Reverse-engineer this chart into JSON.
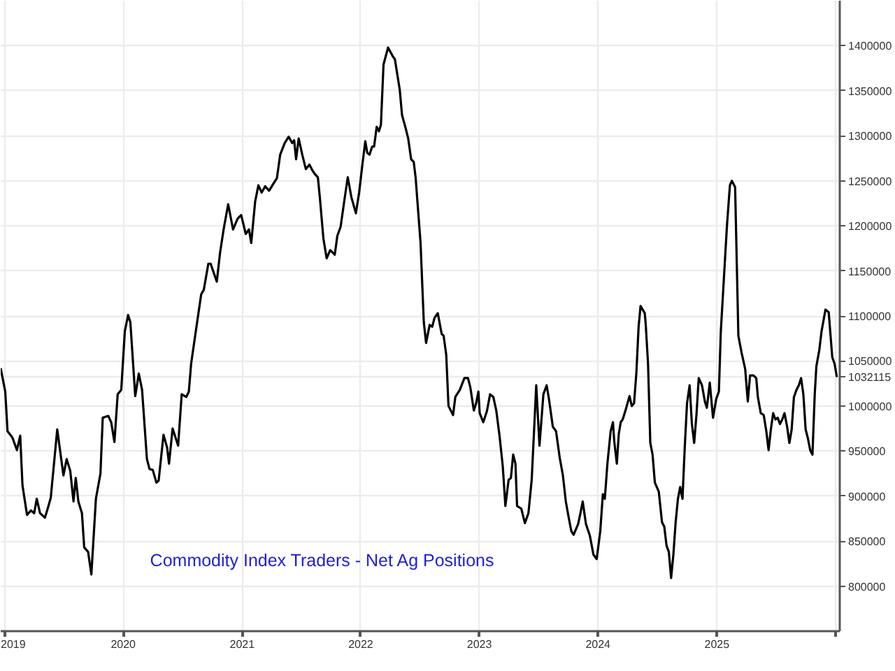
{
  "chart_data": {
    "type": "line",
    "title": "Commodity Index Traders - Net Ag Positions",
    "x": [
      "2018-12-20",
      "2019-01-03",
      "2019-01-10",
      "2019-01-25",
      "2019-02-08",
      "2019-02-18",
      "2019-02-25",
      "2019-03-11",
      "2019-03-23",
      "2019-04-02",
      "2019-04-10",
      "2019-04-20",
      "2019-05-05",
      "2019-05-12",
      "2019-05-23",
      "2019-06-12",
      "2019-07-01",
      "2019-07-11",
      "2019-07-22",
      "2019-08-01",
      "2019-08-08",
      "2019-08-16",
      "2019-08-27",
      "2019-09-03",
      "2019-09-15",
      "2019-09-25",
      "2019-10-09",
      "2019-10-23",
      "2019-10-30",
      "2019-11-16",
      "2019-11-25",
      "2019-12-05",
      "2019-12-15",
      "2019-12-26",
      "2020-01-06",
      "2020-01-16",
      "2020-01-23",
      "2020-02-07",
      "2020-02-18",
      "2020-02-28",
      "2020-03-14",
      "2020-03-22",
      "2020-04-01",
      "2020-04-12",
      "2020-04-19",
      "2020-05-04",
      "2020-05-15",
      "2020-05-21",
      "2020-06-01",
      "2020-06-18",
      "2020-06-29",
      "2020-07-13",
      "2020-07-21",
      "2020-07-28",
      "2020-08-11",
      "2020-08-28",
      "2020-09-05",
      "2020-09-19",
      "2020-09-26",
      "2020-10-15",
      "2020-10-25",
      "2020-11-05",
      "2020-11-19",
      "2020-12-04",
      "2020-12-18",
      "2020-12-29",
      "2021-01-12",
      "2021-01-22",
      "2021-01-29",
      "2021-02-10",
      "2021-02-20",
      "2021-03-02",
      "2021-03-13",
      "2021-03-25",
      "2021-04-04",
      "2021-04-18",
      "2021-04-28",
      "2021-05-12",
      "2021-05-24",
      "2021-06-04",
      "2021-06-10",
      "2021-06-16",
      "2021-06-24",
      "2021-07-05",
      "2021-07-16",
      "2021-07-27",
      "2021-08-06",
      "2021-08-14",
      "2021-08-22",
      "2021-08-28",
      "2021-09-08",
      "2021-09-18",
      "2021-09-29",
      "2021-10-13",
      "2021-10-21",
      "2021-10-31",
      "2021-11-11",
      "2021-11-22",
      "2021-12-03",
      "2021-12-17",
      "2021-12-27",
      "2022-01-07",
      "2022-01-15",
      "2022-01-21",
      "2022-01-28",
      "2022-02-05",
      "2022-02-11",
      "2022-02-19",
      "2022-02-26",
      "2022-03-04",
      "2022-03-12",
      "2022-03-26",
      "2022-04-10",
      "2022-04-16",
      "2022-05-01",
      "2022-05-08",
      "2022-05-18",
      "2022-05-27",
      "2022-06-05",
      "2022-06-13",
      "2022-06-19",
      "2022-07-04",
      "2022-07-14",
      "2022-07-21",
      "2022-08-01",
      "2022-08-09",
      "2022-08-16",
      "2022-08-26",
      "2022-09-07",
      "2022-09-13",
      "2022-09-21",
      "2022-09-28",
      "2022-10-12",
      "2022-10-19",
      "2022-11-02",
      "2022-11-16",
      "2022-11-27",
      "2022-12-04",
      "2022-12-15",
      "2022-12-22",
      "2022-12-29",
      "2023-01-02",
      "2023-01-13",
      "2023-01-24",
      "2023-02-03",
      "2023-02-13",
      "2023-02-22",
      "2023-03-04",
      "2023-03-14",
      "2023-03-22",
      "2023-04-01",
      "2023-04-08",
      "2023-04-15",
      "2023-04-22",
      "2023-04-27",
      "2023-05-10",
      "2023-05-21",
      "2023-06-01",
      "2023-06-11",
      "2023-06-25",
      "2023-07-05",
      "2023-07-17",
      "2023-07-27",
      "2023-08-03",
      "2023-08-15",
      "2023-08-25",
      "2023-09-05",
      "2023-09-15",
      "2023-09-24",
      "2023-10-04",
      "2023-10-11",
      "2023-10-18",
      "2023-11-01",
      "2023-11-08",
      "2023-11-15",
      "2023-11-25",
      "2023-12-07",
      "2023-12-18",
      "2023-12-28",
      "2024-01-08",
      "2024-01-16",
      "2024-01-22",
      "2024-01-30",
      "2024-02-09",
      "2024-02-16",
      "2024-02-20",
      "2024-02-28",
      "2024-03-05",
      "2024-03-11",
      "2024-03-17",
      "2024-03-28",
      "2024-04-07",
      "2024-04-14",
      "2024-04-21",
      "2024-04-28",
      "2024-05-05",
      "2024-05-11",
      "2024-05-24",
      "2024-05-27",
      "2024-06-03",
      "2024-06-10",
      "2024-06-17",
      "2024-06-24",
      "2024-07-06",
      "2024-07-16",
      "2024-07-23",
      "2024-07-30",
      "2024-08-06",
      "2024-08-13",
      "2024-08-20",
      "2024-08-27",
      "2024-09-03",
      "2024-09-10",
      "2024-09-17",
      "2024-09-24",
      "2024-10-01",
      "2024-10-09",
      "2024-10-16",
      "2024-10-23",
      "2024-10-30",
      "2024-11-06",
      "2024-11-16",
      "2024-11-25",
      "2024-12-01",
      "2024-12-10",
      "2024-12-20",
      "2024-12-30",
      "2025-01-07",
      "2025-01-13",
      "2025-02-01",
      "2025-02-10",
      "2025-02-16",
      "2025-02-26",
      "2025-03-08",
      "2025-03-18",
      "2025-03-29",
      "2025-04-06",
      "2025-04-13",
      "2025-04-23",
      "2025-05-02",
      "2025-05-07",
      "2025-05-16",
      "2025-05-25",
      "2025-06-02",
      "2025-06-09",
      "2025-06-16",
      "2025-06-23",
      "2025-06-30",
      "2025-07-07",
      "2025-07-14",
      "2025-07-21",
      "2025-07-28",
      "2025-08-05",
      "2025-08-12",
      "2025-08-19",
      "2025-08-26",
      "2025-09-03",
      "2025-09-10",
      "2025-09-17",
      "2025-09-24",
      "2025-10-01",
      "2025-10-08",
      "2025-10-15",
      "2025-10-22",
      "2025-10-29",
      "2025-11-03",
      "2025-11-12",
      "2025-11-19",
      "2025-12-01",
      "2025-12-11",
      "2025-12-18",
      "2025-12-22",
      "2025-12-29",
      "2026-01-05"
    ],
    "series": [
      {
        "color": "#000000",
        "values": [
          1042000,
          1016000,
          972000,
          965000,
          951000,
          967000,
          912000,
          879000,
          884000,
          881000,
          897000,
          881000,
          876000,
          884000,
          898000,
          974000,
          923000,
          941000,
          928000,
          894000,
          920000,
          894000,
          881000,
          843000,
          838000,
          813000,
          897000,
          925000,
          987000,
          989000,
          982000,
          960000,
          1013000,
          1018000,
          1083000,
          1101000,
          1093000,
          1011000,
          1036000,
          1018000,
          941000,
          930000,
          929000,
          915000,
          917000,
          968000,
          954000,
          936000,
          975000,
          956000,
          1013000,
          1010000,
          1016000,
          1047000,
          1082000,
          1124000,
          1129000,
          1158000,
          1158000,
          1138000,
          1170000,
          1196000,
          1224000,
          1196000,
          1208000,
          1212000,
          1191000,
          1196000,
          1181000,
          1227000,
          1245000,
          1237000,
          1244000,
          1239000,
          1245000,
          1253000,
          1279000,
          1292000,
          1299000,
          1292000,
          1295000,
          1274000,
          1297000,
          1279000,
          1263000,
          1268000,
          1261000,
          1257000,
          1254000,
          1232000,
          1186000,
          1164000,
          1173000,
          1168000,
          1189000,
          1199000,
          1227000,
          1254000,
          1232000,
          1214000,
          1237000,
          1271000,
          1294000,
          1281000,
          1279000,
          1288000,
          1288000,
          1310000,
          1305000,
          1312000,
          1379000,
          1398000,
          1388000,
          1385000,
          1351000,
          1323000,
          1310000,
          1297000,
          1274000,
          1271000,
          1253000,
          1181000,
          1093000,
          1070000,
          1090000,
          1088000,
          1098000,
          1103000,
          1080000,
          1078000,
          1057000,
          1000000,
          990000,
          1010000,
          1018000,
          1031000,
          1031000,
          1021000,
          995000,
          1003000,
          1016000,
          992000,
          982000,
          994000,
          1013000,
          1010000,
          995000,
          967000,
          933000,
          889000,
          918000,
          920000,
          946000,
          936000,
          889000,
          886000,
          870000,
          881000,
          918000,
          1023000,
          956000,
          1013000,
          1023000,
          1008000,
          977000,
          972000,
          943000,
          923000,
          894000,
          874000,
          861000,
          857000,
          869000,
          881000,
          894000,
          869000,
          856000,
          835000,
          830000,
          861000,
          902000,
          897000,
          936000,
          972000,
          982000,
          961000,
          936000,
          969000,
          982000,
          985000,
          998000,
          1011000,
          1000000,
          1003000,
          1036000,
          1088000,
          1111000,
          1103000,
          1090000,
          1047000,
          959000,
          946000,
          915000,
          905000,
          871000,
          866000,
          845000,
          838000,
          809000,
          835000,
          871000,
          897000,
          910000,
          897000,
          954000,
          1003000,
          1023000,
          980000,
          959000,
          990000,
          1031000,
          1023000,
          1005000,
          998000,
          1026000,
          987000,
          1008000,
          1016000,
          1083000,
          1201000,
          1245000,
          1250000,
          1243000,
          1078000,
          1059000,
          1041000,
          1005000,
          1034000,
          1034000,
          1031000,
          1010000,
          992000,
          990000,
          972000,
          951000,
          974000,
          992000,
          985000,
          987000,
          980000,
          985000,
          992000,
          977000,
          959000,
          974000,
          1010000,
          1018000,
          1023000,
          1031000,
          1013000,
          974000,
          964000,
          951000,
          946000,
          1013000,
          1044000,
          1062000,
          1083000,
          1107000,
          1104000,
          1072000,
          1054000,
          1047000,
          1032115
        ]
      }
    ],
    "xlim": [
      "2018-12-20",
      "2026-01-14"
    ],
    "xticks": [
      "2019",
      "2020",
      "2021",
      "2022",
      "2023",
      "2024",
      "2025",
      {
        "value": "2026",
        "label": null
      }
    ],
    "ylim": [
      750000,
      1450000
    ],
    "yticks": [
      800000,
      850000,
      900000,
      950000,
      1000000,
      1032115,
      1050000,
      1100000,
      1150000,
      1200000,
      1250000,
      1300000,
      1350000,
      1400000
    ],
    "grid": true
  }
}
